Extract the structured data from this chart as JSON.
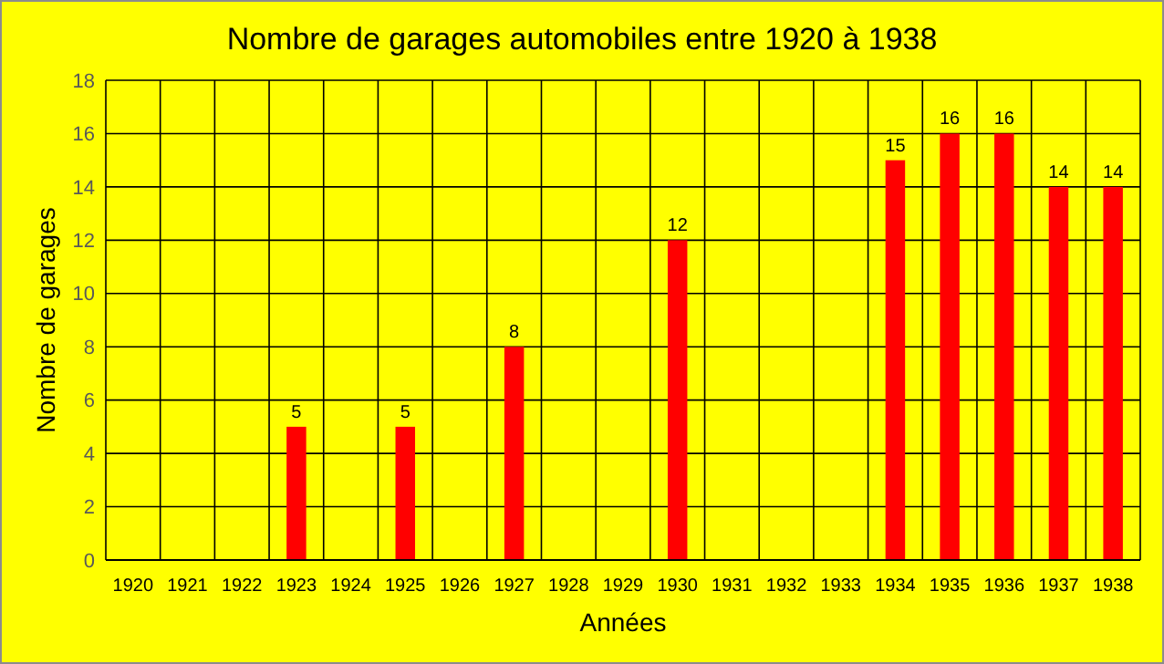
{
  "chart_data": {
    "type": "bar",
    "title": "Nombre de garages automobiles entre 1920 à 1938",
    "xlabel": "Années",
    "ylabel": "Nombre de garages",
    "categories": [
      "1920",
      "1921",
      "1922",
      "1923",
      "1924",
      "1925",
      "1926",
      "1927",
      "1928",
      "1929",
      "1930",
      "1931",
      "1932",
      "1933",
      "1934",
      "1935",
      "1936",
      "1937",
      "1938"
    ],
    "values": [
      0,
      0,
      0,
      5,
      0,
      5,
      0,
      8,
      0,
      0,
      12,
      0,
      0,
      0,
      15,
      16,
      16,
      14,
      14
    ],
    "value_labels": [
      null,
      null,
      null,
      "5",
      null,
      "5",
      null,
      "8",
      null,
      null,
      "12",
      null,
      null,
      null,
      "15",
      "16",
      "16",
      "14",
      "14"
    ],
    "color": "#ff0000",
    "ylim": [
      0,
      18
    ],
    "yticks": [
      0,
      2,
      4,
      6,
      8,
      10,
      12,
      14,
      16,
      18
    ],
    "grid": true
  }
}
